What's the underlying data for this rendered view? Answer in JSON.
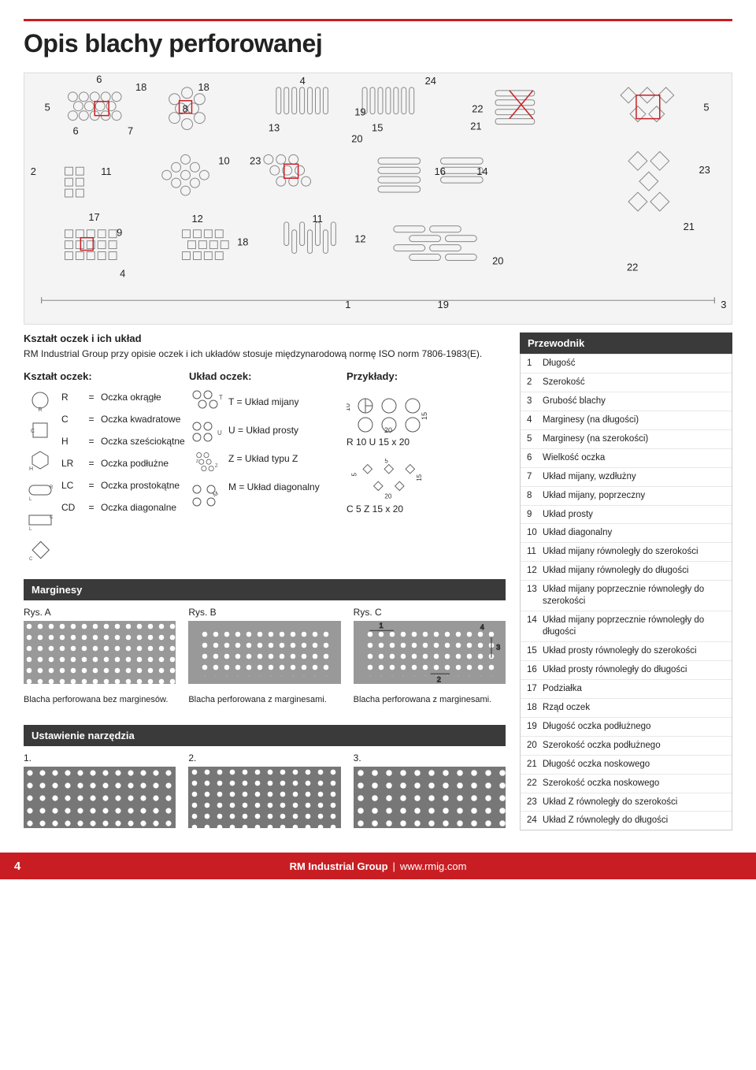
{
  "title": "Opis blachy perforowanej",
  "diagram": {
    "bg": "#f4f4f4",
    "labels": [
      "1",
      "2",
      "3",
      "4",
      "5",
      "6",
      "7",
      "8",
      "9",
      "10",
      "11",
      "12",
      "13",
      "14",
      "15",
      "16",
      "17",
      "18",
      "19",
      "20",
      "21",
      "22",
      "23",
      "24"
    ]
  },
  "intro": {
    "heading": "Kształt oczek i ich układ",
    "text": "RM Industrial Group przy opisie oczek i ich układów stosuje międzynarodową normę ISO norm 7806-1983(E)."
  },
  "columns": {
    "shape_header": "Kształt oczek:",
    "layout_header": "Układ oczek:",
    "examples_header": "Przykłady:"
  },
  "shape_codes": [
    {
      "code": "R",
      "eq": "=",
      "label": "Oczka okrągłe"
    },
    {
      "code": "C",
      "eq": "=",
      "label": "Oczka kwadratowe"
    },
    {
      "code": "H",
      "eq": "=",
      "label": "Oczka sześciokątne"
    },
    {
      "code": "LR",
      "eq": "=",
      "label": "Oczka podłużne"
    },
    {
      "code": "LC",
      "eq": "=",
      "label": "Oczka prostokątne"
    },
    {
      "code": "CD",
      "eq": "=",
      "label": "Oczka diagonalne"
    }
  ],
  "layout_codes": [
    {
      "code": "T",
      "text": "T = Układ mijany"
    },
    {
      "code": "U",
      "text": "U = Układ prosty"
    },
    {
      "code": "Z",
      "text": "Z = Układ typu Z"
    },
    {
      "code": "M",
      "text": "M = Układ diagonalny"
    }
  ],
  "examples": [
    {
      "label": "R 10 U 15 x 20",
      "dims": [
        "10",
        "15",
        "20"
      ]
    },
    {
      "label": "C 5 Z 15 x 20",
      "dims": [
        "5",
        "5",
        "15",
        "20"
      ]
    }
  ],
  "margins": {
    "heading": "Marginesy",
    "figs": [
      {
        "title": "Rys. A",
        "caption": "Blacha perforowana bez marginesów."
      },
      {
        "title": "Rys. B",
        "caption": "Blacha perforowana z marginesami."
      },
      {
        "title": "Rys. C",
        "caption": "Blacha perforowana z marginesami."
      }
    ]
  },
  "tooling": {
    "heading": "Ustawienie narzędzia",
    "items": [
      "1.",
      "2.",
      "3."
    ]
  },
  "guide": {
    "heading": "Przewodnik",
    "items": [
      "Długość",
      "Szerokość",
      "Grubość blachy",
      "Marginesy (na długości)",
      "Marginesy (na szerokości)",
      "Wielkość oczka",
      "Układ mijany, wzdłużny",
      "Układ mijany, poprzeczny",
      "Układ prosty",
      "Układ diagonalny",
      "Układ mijany równoległy do szerokości",
      "Układ mijany równoległy do długości",
      "Układ mijany poprzecznie równoległy do szerokości",
      "Układ mijany poprzecznie równoległy do długości",
      "Układ prosty równoległy do szerokości",
      "Układ prosty równoległy do długości",
      "Podziałka",
      "Rząd oczek",
      "Długość oczka podłużnego",
      "Szerokość oczka podłużnego",
      "Długość oczka noskowego",
      "Szerokość oczka noskowego",
      "Układ Z równoległy do szerokości",
      "Układ Z równoległy do długości"
    ]
  },
  "footer": {
    "page": "4",
    "brand": "RM Industrial Group",
    "site": "www.rmig.com"
  },
  "colors": {
    "red": "#c81e23",
    "dark": "#3a3a3a",
    "grey_bg": "#f4f4f4",
    "fig_grey": "#999"
  }
}
